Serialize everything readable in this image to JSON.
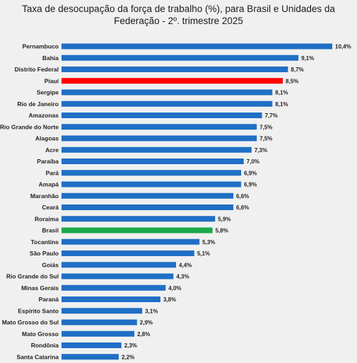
{
  "chart_data": {
    "type": "bar",
    "orientation": "horizontal",
    "title": "Taxa de desocupação da força de trabalho (%), para Brasil e Unidades da Federação - 2º. trimestre 2025",
    "title_lines": [
      "Taxa de desocupação da força de trabalho (%), para Brasil e Unidades da",
      "Federação - 2º. trimestre 2025"
    ],
    "xlabel": "",
    "ylabel": "",
    "xlim": [
      0,
      10.4
    ],
    "grid": false,
    "legend": "none",
    "categories": [
      "Pernambuco",
      "Bahia",
      "Distrito Federal",
      "Piauí",
      "Sergipe",
      "Rio de Janeiro",
      "Amazonas",
      "Rio Grande do Norte",
      "Alagoas",
      "Acre",
      "Paraíba",
      "Pará",
      "Amapá",
      "Maranhão",
      "Ceará",
      "Roraima",
      "Brasil",
      "Tocantins",
      "São Paulo",
      "Goiás",
      "Rio Grande do Sul",
      "Minas Gerais",
      "Paraná",
      "Espírito Santo",
      "Mato Grosso do Sul",
      "Mato Grosso",
      "Rondônia",
      "Santa Catarina"
    ],
    "values": [
      10.4,
      9.1,
      8.7,
      8.5,
      8.1,
      8.1,
      7.7,
      7.5,
      7.5,
      7.3,
      7.0,
      6.9,
      6.9,
      6.6,
      6.6,
      5.9,
      5.8,
      5.3,
      5.1,
      4.4,
      4.3,
      4.0,
      3.8,
      3.1,
      2.9,
      2.8,
      2.3,
      2.2
    ],
    "value_labels": [
      "10,4%",
      "9,1%",
      "8,7%",
      "8,5%",
      "8,1%",
      "8,1%",
      "7,7%",
      "7,5%",
      "7,5%",
      "7,3%",
      "7,0%",
      "6,9%",
      "6,9%",
      "6,6%",
      "6,6%",
      "5,9%",
      "5,8%",
      "5,3%",
      "5,1%",
      "4,4%",
      "4,3%",
      "4,0%",
      "3,8%",
      "3,1%",
      "2,9%",
      "2,8%",
      "2,3%",
      "2,2%"
    ],
    "colors": {
      "default": "#1f6fc5",
      "highlights": {
        "Piauí": "#ff0000",
        "Brasil": "#1aa84a"
      }
    }
  }
}
